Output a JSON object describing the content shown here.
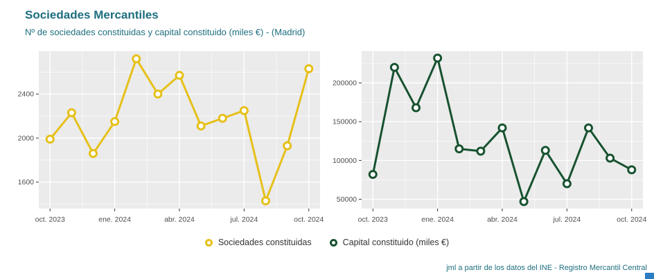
{
  "header": {
    "title": "Sociedades Mercantiles",
    "subtitle": "Nº de sociedades constituidas y capital constituido (miles €) - (Madrid)"
  },
  "legend": [
    {
      "label": "Sociedades constituidas",
      "color": "#e6c019"
    },
    {
      "label": "Capital constituido (miles €)",
      "color": "#175230"
    }
  ],
  "footer": {
    "credit": "jml a partir de los datos del INE - Registro Mercantil Central"
  },
  "colors": {
    "title_teal": "#1d6e7f",
    "accent_yellow": "#e6c019",
    "accent_green": "#175230",
    "panel": "#ebebeb",
    "gridline": "#ffffff",
    "axis_text": "#4d4d4d",
    "corner_accent": "#2b7cc0"
  },
  "chart_data": [
    {
      "type": "line",
      "name": "Sociedades constituidas",
      "color": "#e6c019",
      "x": [
        "oct. 2023",
        "nov. 2023",
        "dic. 2023",
        "ene. 2024",
        "feb. 2024",
        "mar. 2024",
        "abr. 2024",
        "may. 2024",
        "jun. 2024",
        "jul. 2024",
        "ago. 2024",
        "sep. 2024",
        "oct. 2024"
      ],
      "values": [
        1990,
        2230,
        1860,
        2150,
        2720,
        2400,
        2570,
        2110,
        2180,
        2250,
        1430,
        1930,
        2630
      ],
      "xtick_labels": [
        "oct. 2023",
        "ene. 2024",
        "abr. 2024",
        "jul. 2024",
        "oct. 2024"
      ],
      "xtick_indices": [
        0,
        3,
        6,
        9,
        12
      ],
      "yticks": [
        1600,
        2000,
        2400
      ],
      "ylim": [
        1360,
        2790
      ],
      "grid": "on",
      "legend_position": "bottom"
    },
    {
      "type": "line",
      "name": "Capital constituido (miles €)",
      "color": "#175230",
      "x": [
        "oct. 2023",
        "nov. 2023",
        "dic. 2023",
        "ene. 2024",
        "feb. 2024",
        "mar. 2024",
        "abr. 2024",
        "may. 2024",
        "jun. 2024",
        "jul. 2024",
        "ago. 2024",
        "sep. 2024",
        "oct. 2024"
      ],
      "values": [
        82000,
        220000,
        168000,
        232000,
        115000,
        112000,
        142000,
        47000,
        113000,
        70000,
        142000,
        103000,
        88000
      ],
      "xtick_labels": [
        "oct. 2023",
        "ene. 2024",
        "abr. 2024",
        "jul. 2024",
        "oct. 2024"
      ],
      "xtick_indices": [
        0,
        3,
        6,
        9,
        12
      ],
      "yticks": [
        50000,
        100000,
        150000,
        200000
      ],
      "ylim": [
        38000,
        241000
      ],
      "grid": "on",
      "legend_position": "bottom"
    }
  ]
}
